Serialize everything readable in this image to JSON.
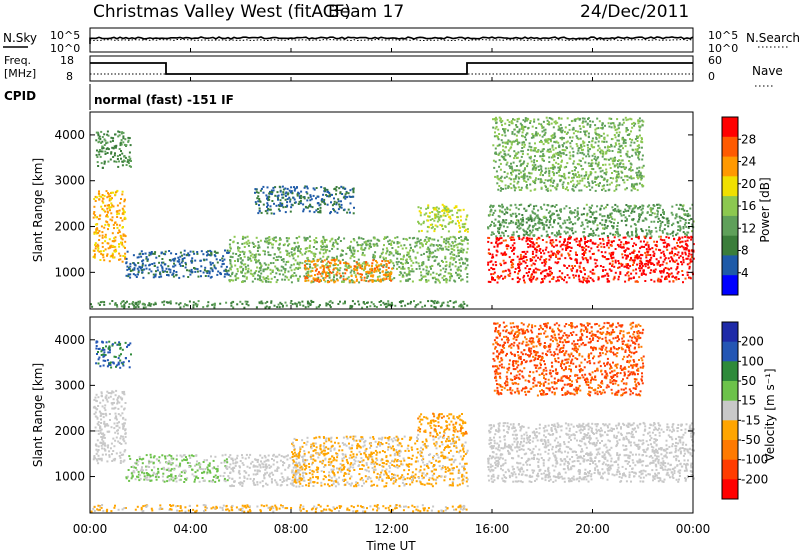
{
  "header": {
    "site": "Christmas Valley West (fitACF)",
    "beam": "Beam 17",
    "date": "24/Dec/2011"
  },
  "params": {
    "nsky_label": "N.Sky",
    "nsearch_label": "N.Search",
    "freq_label_1": "Freq.",
    "freq_label_2": "[MHz]",
    "nave_label": "Nave",
    "cpid_label": "CPID",
    "cpid_text": "normal (fast) -151 IF",
    "noise_ticks_left": [
      "10^5",
      "10^0"
    ],
    "noise_ticks_right": [
      "10^5",
      "10^0"
    ],
    "freq_ticks": [
      "18",
      "8"
    ],
    "nave_ticks": [
      "60",
      "0"
    ]
  },
  "colors": {
    "power": [
      "#0000ff",
      "#1e5aa8",
      "#3a7d3a",
      "#5fa05a",
      "#8cc850",
      "#f0e000",
      "#ff9900",
      "#ff5a00",
      "#ff0000"
    ],
    "velocity": [
      "#1e2aa8",
      "#2456b4",
      "#2e8a3a",
      "#6cc24a",
      "#c8c8c8",
      "#ffa500",
      "#ff7a00",
      "#ff3c00",
      "#ff0000"
    ],
    "ground_grey": "#c8c8c8"
  },
  "chart_data": [
    {
      "type": "heatmap",
      "name": "power",
      "xlabel": "Time UT",
      "ylabel": "Slant Range [km]",
      "x_ticks": [
        "00:00",
        "04:00",
        "08:00",
        "12:00",
        "16:00",
        "20:00",
        "00:00"
      ],
      "y_ticks": [
        1000,
        2000,
        3000,
        4000
      ],
      "ylim": [
        200,
        4500
      ],
      "colorbar": {
        "label": "Power [dB]",
        "ticks": [
          4,
          8,
          12,
          16,
          20,
          24,
          28
        ],
        "range": [
          0,
          32
        ]
      },
      "features": [
        {
          "t_start": 0.1,
          "t_end": 1.4,
          "r_low": 1250,
          "r_high": 2800,
          "value": 22
        },
        {
          "t_start": 0.2,
          "t_end": 1.6,
          "r_low": 3300,
          "r_high": 4100,
          "value": 10
        },
        {
          "t_start": 1.4,
          "t_end": 5.5,
          "r_low": 900,
          "r_high": 1500,
          "value": 6
        },
        {
          "t_start": 5.5,
          "t_end": 15.0,
          "r_low": 800,
          "r_high": 1800,
          "value": 14
        },
        {
          "t_start": 8.5,
          "t_end": 12.0,
          "r_low": 800,
          "r_high": 1300,
          "value": 24
        },
        {
          "t_start": 6.5,
          "t_end": 10.5,
          "r_low": 2300,
          "r_high": 2900,
          "value": 7
        },
        {
          "t_start": 13.0,
          "t_end": 15.0,
          "r_low": 1900,
          "r_high": 2500,
          "value": 17
        },
        {
          "t_start": 15.8,
          "t_end": 24.0,
          "r_low": 800,
          "r_high": 1800,
          "value": 30
        },
        {
          "t_start": 15.8,
          "t_end": 24.0,
          "r_low": 1800,
          "r_high": 2500,
          "value": 12
        },
        {
          "t_start": 16.0,
          "t_end": 22.0,
          "r_low": 2800,
          "r_high": 4400,
          "value": 14
        },
        {
          "t_start": 0.0,
          "t_end": 15.0,
          "r_low": 250,
          "r_high": 400,
          "value": 10
        }
      ]
    },
    {
      "type": "heatmap",
      "name": "velocity",
      "xlabel": "Time UT",
      "ylabel": "Slant Range [km]",
      "x_ticks": [
        "00:00",
        "04:00",
        "08:00",
        "12:00",
        "16:00",
        "20:00",
        "00:00"
      ],
      "y_ticks": [
        1000,
        2000,
        3000,
        4000
      ],
      "ylim": [
        200,
        4500
      ],
      "colorbar": {
        "label": "Velocity [m s⁻¹]",
        "ticks": [
          200,
          100,
          50,
          15,
          -15,
          -50,
          -100,
          -200
        ],
        "range": [
          -250,
          250
        ]
      },
      "features": [
        {
          "t_start": 0.1,
          "t_end": 1.4,
          "r_low": 1300,
          "r_high": 2900,
          "value": 0,
          "ground": true
        },
        {
          "t_start": 0.2,
          "t_end": 1.6,
          "r_low": 3400,
          "r_high": 4000,
          "value": 150
        },
        {
          "t_start": 1.4,
          "t_end": 5.5,
          "r_low": 900,
          "r_high": 1500,
          "value": 30
        },
        {
          "t_start": 5.5,
          "t_end": 8.5,
          "r_low": 800,
          "r_high": 1500,
          "value": 0,
          "ground": true
        },
        {
          "t_start": 8.0,
          "t_end": 15.0,
          "r_low": 800,
          "r_high": 1900,
          "value": -40
        },
        {
          "t_start": 13.0,
          "t_end": 15.0,
          "r_low": 1900,
          "r_high": 2400,
          "value": -60
        },
        {
          "t_start": 15.8,
          "t_end": 24.0,
          "r_low": 900,
          "r_high": 2200,
          "value": 0,
          "ground": true
        },
        {
          "t_start": 16.0,
          "t_end": 22.0,
          "r_low": 2800,
          "r_high": 4400,
          "value": -150
        },
        {
          "t_start": 0.0,
          "t_end": 15.0,
          "r_low": 250,
          "r_high": 400,
          "value": -40
        }
      ]
    }
  ]
}
